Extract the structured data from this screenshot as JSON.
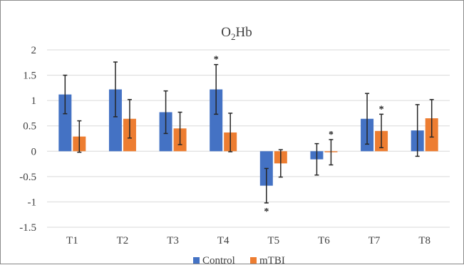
{
  "chart_data": {
    "type": "bar",
    "title": "O2Hb",
    "title_base": "O",
    "title_sub": "2",
    "title_rest": "Hb",
    "categories": [
      "T1",
      "T2",
      "T3",
      "T4",
      "T5",
      "T6",
      "T7",
      "T8"
    ],
    "ylim": [
      -1.5,
      2
    ],
    "yticks": [
      "2",
      "1.5",
      "1",
      "0.5",
      "0",
      "-0.5",
      "-1",
      "-1.5"
    ],
    "ytick_values": [
      2,
      1.5,
      1,
      0.5,
      0,
      -0.5,
      -1,
      -1.5
    ],
    "grid": true,
    "legend_position": "bottom",
    "series": [
      {
        "name": "Control",
        "color": "#4472c4",
        "values": [
          1.12,
          1.22,
          0.77,
          1.22,
          -0.68,
          -0.16,
          0.64,
          0.41
        ],
        "error": [
          0.38,
          0.54,
          0.42,
          0.49,
          0.34,
          0.31,
          0.5,
          0.51
        ]
      },
      {
        "name": "mTBI",
        "color": "#ed7d31",
        "values": [
          0.29,
          0.64,
          0.45,
          0.37,
          -0.24,
          -0.02,
          0.4,
          0.65
        ],
        "error": [
          0.31,
          0.38,
          0.32,
          0.38,
          0.27,
          0.25,
          0.33,
          0.37
        ]
      }
    ],
    "annotations": [
      {
        "text": "*",
        "category": "T4",
        "series": "Control",
        "side": "top"
      },
      {
        "text": "*",
        "category": "T5",
        "series": "Control",
        "side": "bottom"
      },
      {
        "text": "*",
        "category": "T6",
        "series": "mTBI",
        "side": "top"
      },
      {
        "text": "*",
        "category": "T7",
        "series": "mTBI",
        "side": "top"
      }
    ]
  }
}
